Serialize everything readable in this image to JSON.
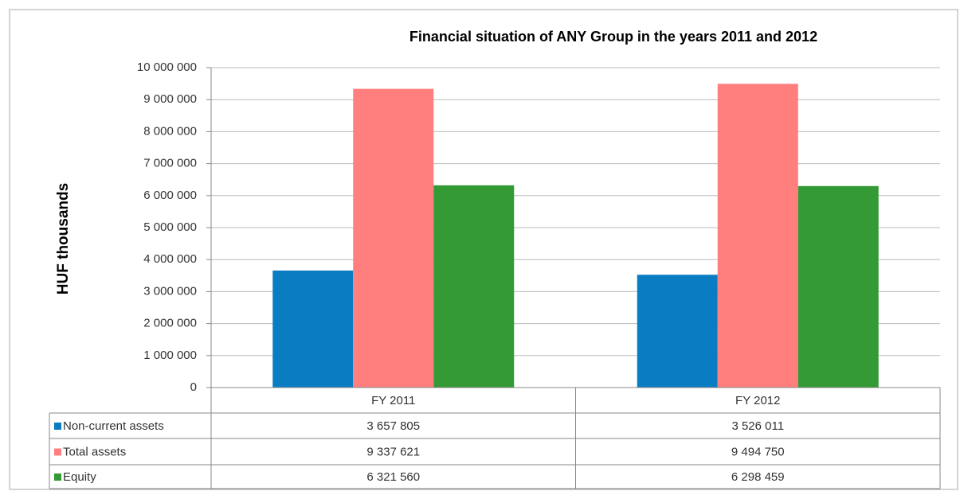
{
  "chart_data": {
    "type": "bar",
    "title": "Financial situation of ANY Group in the years 2011 and 2012",
    "y_label": "HUF thousands",
    "categories": [
      "FY 2011",
      "FY 2012"
    ],
    "series": [
      {
        "name": "Non-current assets",
        "color": "#0a7dc2",
        "values": [
          3657805,
          3526011
        ],
        "value_labels": [
          "3 657 805",
          "3 526 011"
        ]
      },
      {
        "name": "Total assets",
        "color": "#ff7f7f",
        "values": [
          9337621,
          9494750
        ],
        "value_labels": [
          "9 337 621",
          "9 494 750"
        ]
      },
      {
        "name": "Equity",
        "color": "#339a35",
        "values": [
          6321560,
          6298459
        ],
        "value_labels": [
          "6 321 560",
          "6 298 459"
        ]
      }
    ],
    "ylim": [
      0,
      10000000
    ],
    "yticks": [
      0,
      {
        "value": 1000000,
        "label": "1 000 000"
      },
      {
        "value": 2000000,
        "label": "2 000 000"
      },
      {
        "value": 3000000,
        "label": "3 000 000"
      },
      {
        "value": 4000000,
        "label": "4 000 000"
      },
      {
        "value": 5000000,
        "label": "5 000 000"
      },
      {
        "value": 6000000,
        "label": "6 000 000"
      },
      {
        "value": 7000000,
        "label": "7 000 000"
      },
      {
        "value": 8000000,
        "label": "8 000 000"
      },
      {
        "value": 9000000,
        "label": "9 000 000"
      },
      {
        "value": 10000000,
        "label": "10 000 000"
      }
    ],
    "grid": true,
    "legend": "table"
  }
}
